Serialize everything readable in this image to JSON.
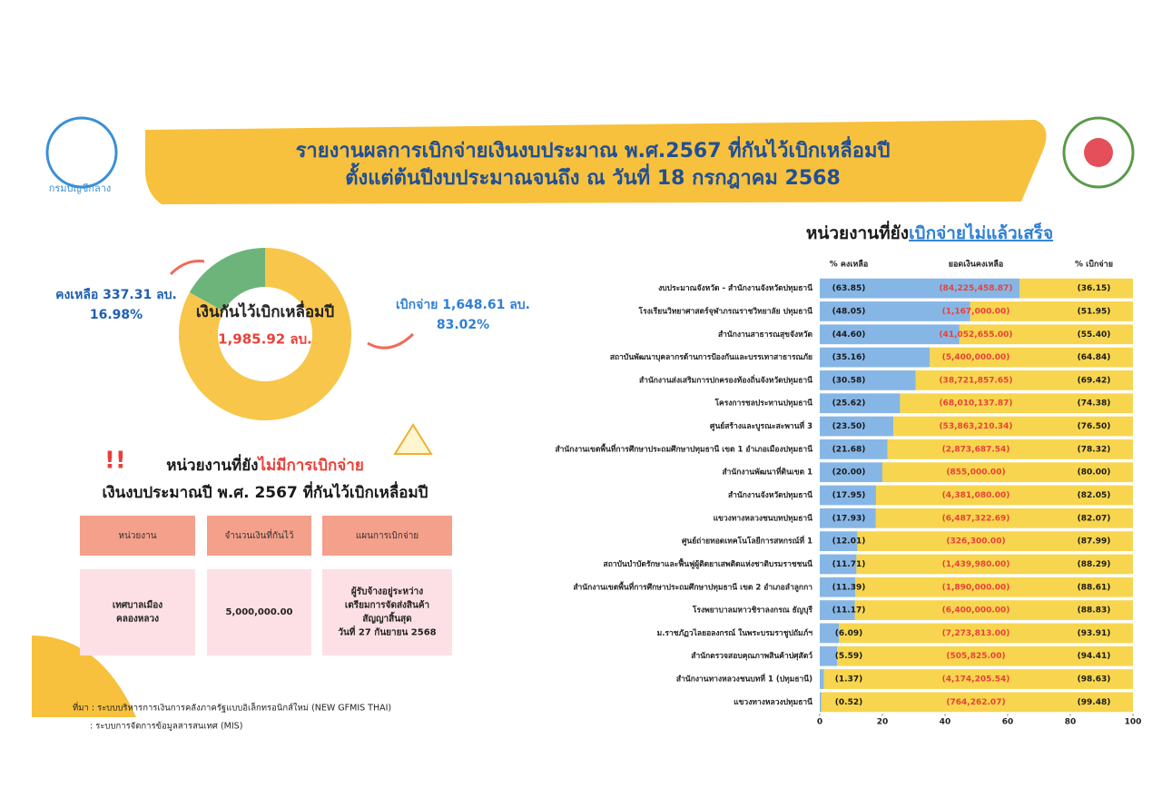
{
  "header": {
    "logo_text": "กรมบัญชีกลาง",
    "title": [
      "รายงานผลการเบิกจ่ายเงินงบประมาณ พ.ศ.2567 ที่กันไว้เบิกเหลื่อมปี",
      "ตั้งแต่ต้นปีงบประมาณจนถึง ณ วันที่ 18 กรกฎาคม 2568"
    ]
  },
  "chart_data": [
    {
      "type": "donut",
      "center_label": "เงินกันไว้เบิกเหลื่อมปี",
      "center_value": "1,985.92 ลบ.",
      "categories": [
        "คงเหลือ 337.31 ลบ.",
        "เบิกจ่าย 1,648.61 ลบ."
      ],
      "values": [
        16.98,
        83.02
      ],
      "value_labels": [
        "16.98%",
        "83.02%"
      ],
      "colors": [
        "#6cb47a",
        "#f7c64a"
      ]
    },
    {
      "type": "stacked-bar-horizontal",
      "title": "หน่วยงานที่ยัง",
      "title_highlight": "เบิกจ่ายไม่แล้วเสร็จ",
      "categories": [
        "งบประมาณจังหวัด - สำนักงานจังหวัดปทุมธานี",
        "โรงเรียนวิทยาศาสตร์จุฬาภรณราชวิทยาลัย ปทุมธานี",
        "สำนักงานสาธารณสุขจังหวัด",
        "สถาบันพัฒนาบุคลากรด้านการป้องกันและบรรเทาสาธารณภัย",
        "สำนักงานส่งเสริมการปกครองท้องถิ่นจังหวัดปทุมธานี",
        "โครงการชลประทานปทุมธานี",
        "ศูนย์สร้างและบูรณะสะพานที่ 3",
        "สำนักงานเขตพื้นที่การศึกษาประถมศึกษาปทุมธานี เขต 1 อำเภอเมืองปทุมธานี",
        "สำนักงานพัฒนาที่ดินเขต 1",
        "สำนักงานจังหวัดปทุมธานี",
        "แขวงทางหลวงชนบทปทุมธานี",
        "ศูนย์ถ่ายทอดเทคโนโลยีการสหกรณ์ที่ 1",
        "สถาบันบำบัดรักษาและฟื้นฟูผู้ติดยาเสพติดแห่งชาติบรมราชชนนี",
        "สำนักงานเขตพื้นที่การศึกษาประถมศึกษาปทุมธานี เขต 2 อำเภอลำลูกกา",
        "โรงพยาบาลมหาวชิราลงกรณ ธัญบุรี",
        "ม.ราชภัฏวไลยอลงกรณ์ ในพระบรมราชูปถัมภ์ฯ",
        "สำนักตรวจสอบคุณภาพสินค้าปศุสัตว์",
        "สำนักงานทางหลวงชนบทที่ 1 (ปทุมธานี)",
        "แขวงทางหลวงปทุมธานี"
      ],
      "series": [
        {
          "name": "% คงเหลือ",
          "color": "#86b6e6",
          "values": [
            63.85,
            48.05,
            44.6,
            35.16,
            30.58,
            25.62,
            23.5,
            21.68,
            20.0,
            17.95,
            17.93,
            12.01,
            11.71,
            11.39,
            11.17,
            6.09,
            5.59,
            1.37,
            0.52
          ],
          "value_labels": [
            "(63.85)",
            "(48.05)",
            "(44.60)",
            "(35.16)",
            "(30.58)",
            "(25.62)",
            "(23.50)",
            "(21.68)",
            "(20.00)",
            "(17.95)",
            "(17.93)",
            "(12.01)",
            "(11.71)",
            "(11.39)",
            "(11.17)",
            "(6.09)",
            "(5.59)",
            "(1.37)",
            "(0.52)"
          ]
        },
        {
          "name": "% เบิกจ่าย",
          "color": "#f7d54e",
          "values": [
            36.15,
            51.95,
            55.4,
            64.84,
            69.42,
            74.38,
            76.5,
            78.32,
            80.0,
            82.05,
            82.07,
            87.99,
            88.29,
            88.61,
            88.83,
            93.91,
            94.41,
            98.63,
            99.48
          ],
          "value_labels": [
            "(36.15)",
            "(51.95)",
            "(55.40)",
            "(64.84)",
            "(69.42)",
            "(74.38)",
            "(76.50)",
            "(78.32)",
            "(80.00)",
            "(82.05)",
            "(82.07)",
            "(87.99)",
            "(88.29)",
            "(88.61)",
            "(88.83)",
            "(93.91)",
            "(94.41)",
            "(98.63)",
            "(99.48)"
          ]
        }
      ],
      "amount_header": "ยอดเงินคงเหลือ",
      "amounts": [
        "(84,225,458.87)",
        "(1,167,000.00)",
        "(41,052,655.00)",
        "(5,400,000.00)",
        "(38,721,857.65)",
        "(68,010,137.87)",
        "(53,863,210.34)",
        "(2,873,687.54)",
        "(855,000.00)",
        "(4,381,080.00)",
        "(6,487,322.69)",
        "(326,300.00)",
        "(1,439,980.00)",
        "(1,890,000.00)",
        "(6,400,000.00)",
        "(7,273,813.00)",
        "(505,825.00)",
        "(4,174,205.54)",
        "(764,262.07)"
      ],
      "xlim": [
        0,
        100
      ],
      "xticks": [
        0,
        20,
        40,
        60,
        80,
        100
      ]
    }
  ],
  "table": {
    "title": "หน่วยงานที่ยัง",
    "title_highlight": "ไม่มีการเบิกจ่าย",
    "subtitle": "เงินงบประมาณปี พ.ศ. 2567 ที่กันไว้เบิกเหลื่อมปี",
    "header": [
      "หน่วยงาน",
      "จำนวนเงินที่กันไว้",
      "แผนการเบิกจ่าย"
    ],
    "rows": [
      [
        [
          "เทศบาลเมือง",
          "คลองหลวง"
        ],
        [
          "5,000,000.00"
        ],
        [
          "ผู้รับจ้างอยู่ระหว่าง",
          "เตรียมการจัดส่งสินค้า",
          "สัญญาสิ้นสุด",
          "วันที่ 27 กันยายน 2568"
        ]
      ]
    ]
  },
  "source": [
    "ที่มา : ระบบบริหารการเงินการคลังภาครัฐแบบอิเล็กทรอนิกส์ใหม่ (NEW GFMIS THAI)",
    ": ระบบการจัดการข้อมูลสารสนเทศ (MIS)"
  ]
}
